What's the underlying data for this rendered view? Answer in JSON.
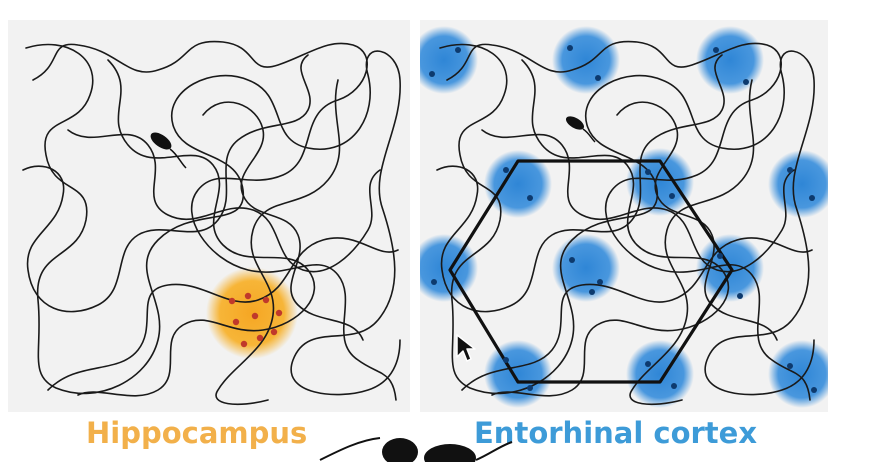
{
  "left_panel": {
    "caption": "Hippocampus",
    "caption_color": "#f2b04a",
    "field_color": "#f7b22e",
    "spike_color": "#c0392b"
  },
  "right_panel": {
    "caption": "Entorhinal cortex",
    "caption_color": "#3d9bd8",
    "field_color": "#2f86d6",
    "spike_color": "#0d3a6e",
    "hexagon_color": "#111111"
  },
  "trajectory_color": "#1a1a1a"
}
